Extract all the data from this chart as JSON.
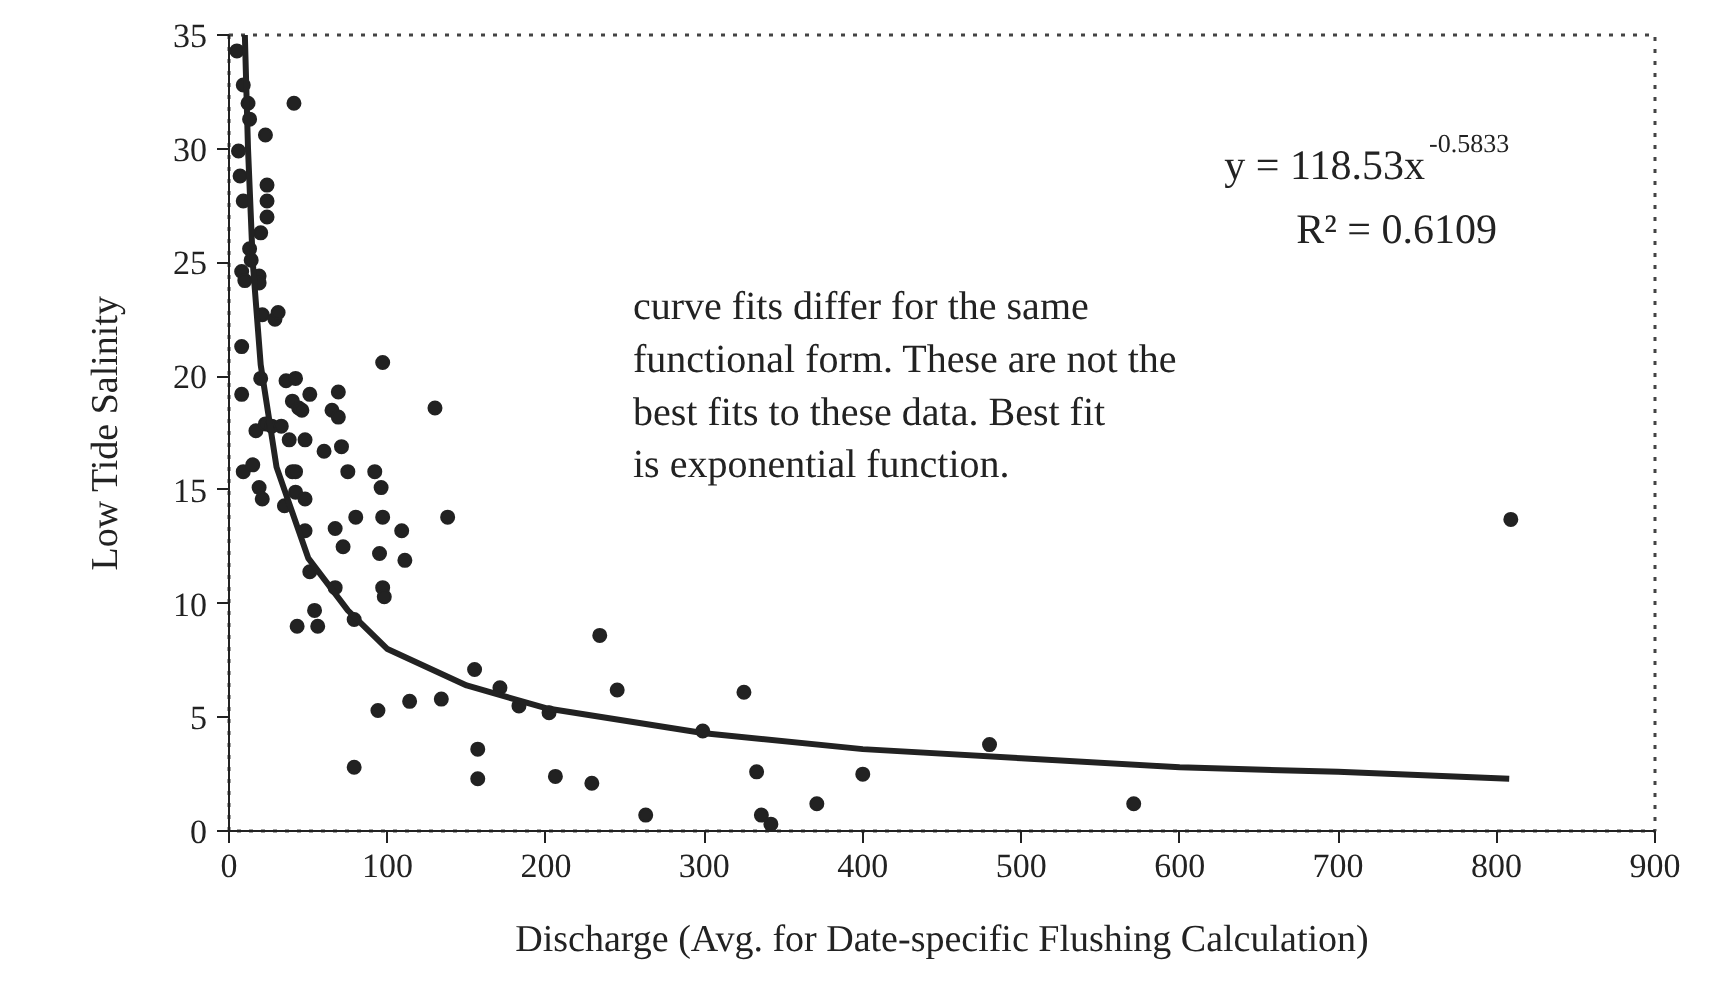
{
  "chart_data": {
    "type": "scatter",
    "xlabel": "Discharge (Avg. for Date-specific Flushing Calculation)",
    "ylabel": "Low Tide Salinity",
    "xlim": [
      0,
      900
    ],
    "xticks": [
      0,
      100,
      200,
      300,
      400,
      500,
      600,
      700,
      800,
      900
    ],
    "ylim": [
      0,
      35
    ],
    "yticks": [
      0,
      5,
      10,
      15,
      20,
      25,
      30,
      35
    ],
    "grid": false,
    "marker": "circle",
    "series": [
      {
        "color": "#222222",
        "x": [
          5,
          9,
          41,
          12,
          13,
          23,
          6,
          7,
          24,
          9,
          24,
          24,
          20,
          13,
          14,
          8,
          10,
          19,
          19,
          21,
          29,
          31,
          8,
          20,
          36,
          42,
          8,
          51,
          69,
          97,
          40,
          44,
          46,
          65,
          69,
          17,
          23,
          27,
          33,
          38,
          48,
          71,
          60,
          9,
          15,
          40,
          42,
          75,
          92,
          130,
          19,
          21,
          42,
          48,
          96,
          35,
          80,
          97,
          138,
          48,
          67,
          72,
          109,
          95,
          111,
          51,
          67,
          97,
          98,
          54,
          43,
          56,
          79,
          155,
          171,
          183,
          202,
          94,
          114,
          134,
          79,
          157,
          157,
          206,
          229,
          234,
          245,
          263,
          299,
          325,
          333,
          336,
          342,
          371,
          400,
          480,
          809,
          571
        ],
        "values": [
          34.3,
          32.8,
          32.0,
          32.0,
          31.3,
          30.6,
          29.9,
          28.8,
          28.4,
          27.7,
          27.7,
          27.0,
          26.3,
          25.6,
          25.1,
          24.6,
          24.2,
          24.4,
          24.1,
          22.7,
          22.5,
          22.8,
          21.3,
          19.9,
          19.8,
          19.9,
          19.2,
          19.2,
          19.3,
          20.6,
          18.9,
          18.6,
          18.5,
          18.5,
          18.2,
          17.6,
          17.9,
          17.8,
          17.8,
          17.2,
          17.2,
          16.9,
          16.7,
          15.8,
          16.1,
          15.8,
          15.8,
          15.8,
          15.8,
          18.6,
          15.1,
          14.6,
          14.9,
          14.6,
          15.1,
          14.3,
          13.8,
          13.8,
          13.8,
          13.2,
          13.3,
          12.5,
          13.2,
          12.2,
          11.9,
          11.4,
          10.7,
          10.7,
          10.3,
          9.7,
          9.0,
          9.0,
          9.3,
          7.1,
          6.3,
          5.5,
          5.2,
          5.3,
          5.7,
          5.8,
          2.8,
          3.6,
          2.3,
          2.4,
          2.1,
          8.6,
          6.2,
          0.7,
          4.4,
          6.1,
          2.6,
          0.7,
          0.3,
          1.2,
          2.5,
          3.8,
          13.7,
          1.2
        ]
      },
      {
        "type": "line",
        "color": "#222222",
        "marker": "none",
        "line_style": "solid",
        "x": [
          10,
          12,
          15,
          20,
          30,
          50,
          75,
          100,
          150,
          200,
          300,
          400,
          500,
          600,
          700,
          808
        ],
        "values": [
          35,
          30,
          25,
          20.5,
          16,
          12,
          9.7,
          8,
          6.4,
          5.4,
          4.3,
          3.6,
          3.2,
          2.8,
          2.6,
          2.3
        ]
      }
    ],
    "annotations": [
      "y = 118.53x$^{-0.5833}$",
      "R² = 0.6109",
      "curve fits differ for the same functional form. These are not the best fits to these data.  Best fit is exponential function."
    ]
  }
}
